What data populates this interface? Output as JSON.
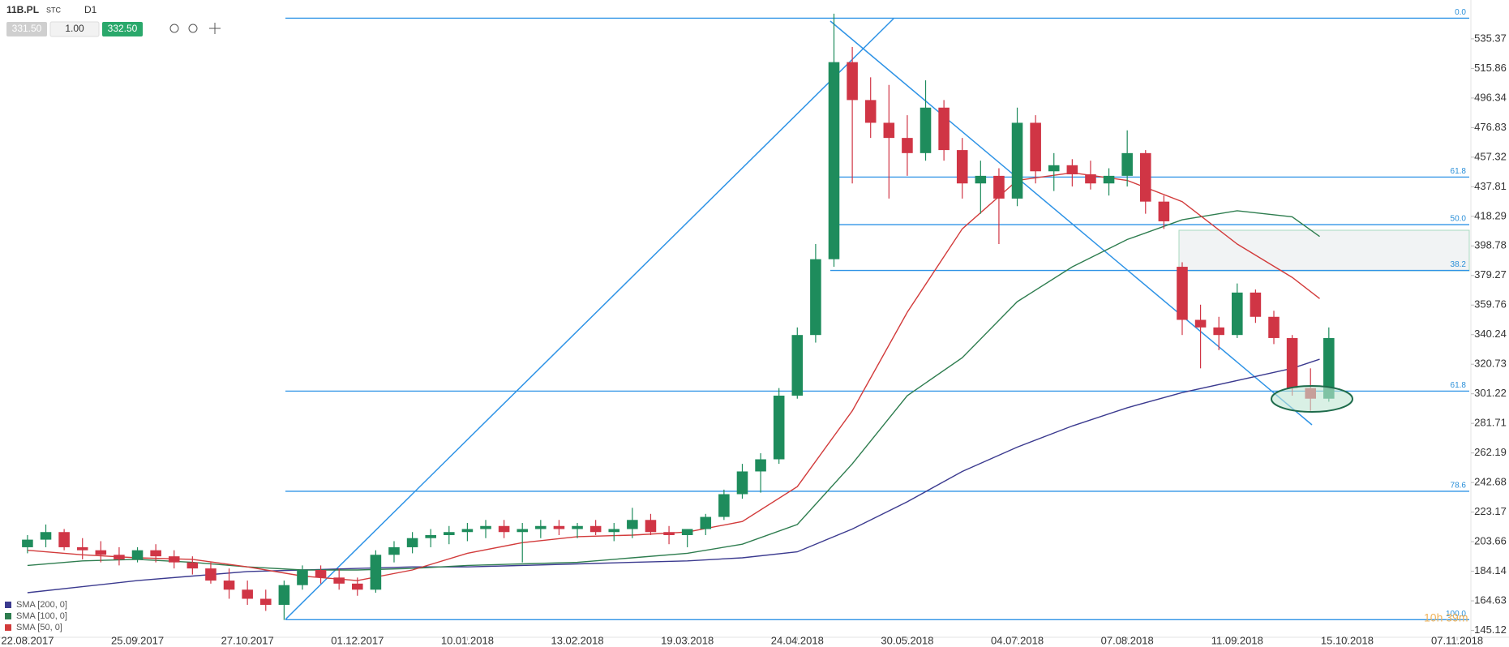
{
  "header": {
    "symbol": "11B.PL",
    "market": "STC",
    "interval": "D1",
    "bid": "331.50",
    "volume": "1.00",
    "ask": "332.50",
    "countdown": "10h 39m"
  },
  "chart_data": {
    "type": "candlestick",
    "x": [
      0,
      4,
      8,
      12,
      16,
      20,
      24,
      28,
      32,
      36,
      40,
      44,
      48,
      52,
      56,
      60,
      64,
      68,
      72,
      76,
      80,
      84,
      88,
      92,
      96,
      100,
      104,
      108,
      112,
      116,
      120,
      124,
      128,
      132,
      136,
      140,
      144,
      148,
      152,
      156,
      160,
      164,
      168,
      172,
      176,
      180,
      184,
      188,
      192,
      196,
      200,
      204,
      208,
      212,
      216,
      220,
      224,
      228,
      232,
      236,
      240,
      244,
      248,
      252,
      256,
      260,
      264,
      268,
      272,
      276,
      280,
      284
    ],
    "open": [
      200,
      205,
      210,
      200,
      198,
      195,
      192,
      198,
      194,
      190,
      186,
      178,
      172,
      166,
      162,
      175,
      185,
      180,
      176,
      172,
      195,
      200,
      206,
      208,
      210,
      212,
      214,
      210,
      212,
      214,
      212,
      214,
      210,
      212,
      218,
      210,
      208,
      212,
      220,
      235,
      250,
      258,
      300,
      340,
      390,
      520,
      495,
      480,
      470,
      460,
      490,
      462,
      440,
      445,
      430,
      480,
      448,
      452,
      446,
      440,
      445,
      460,
      428,
      385,
      350,
      345,
      340,
      368,
      352,
      338,
      305,
      298
    ],
    "high": [
      208,
      215,
      212,
      206,
      204,
      200,
      200,
      202,
      198,
      194,
      190,
      186,
      178,
      172,
      178,
      188,
      188,
      186,
      180,
      198,
      204,
      210,
      212,
      214,
      216,
      218,
      218,
      216,
      218,
      218,
      216,
      218,
      216,
      226,
      222,
      214,
      212,
      222,
      238,
      255,
      262,
      305,
      345,
      400,
      552,
      530,
      510,
      505,
      485,
      508,
      495,
      470,
      455,
      450,
      490,
      485,
      460,
      456,
      455,
      450,
      475,
      462,
      432,
      388,
      360,
      352,
      374,
      370,
      356,
      340,
      318,
      345
    ],
    "low": [
      196,
      200,
      198,
      192,
      190,
      188,
      190,
      190,
      186,
      182,
      176,
      166,
      162,
      158,
      152,
      172,
      176,
      172,
      168,
      170,
      190,
      196,
      200,
      202,
      204,
      206,
      206,
      190,
      206,
      208,
      206,
      208,
      204,
      206,
      208,
      202,
      200,
      208,
      218,
      232,
      236,
      255,
      298,
      335,
      385,
      440,
      470,
      430,
      445,
      455,
      455,
      430,
      420,
      400,
      425,
      440,
      435,
      438,
      436,
      432,
      438,
      420,
      410,
      340,
      318,
      330,
      338,
      348,
      334,
      300,
      290,
      296
    ],
    "close": [
      205,
      210,
      200,
      198,
      195,
      192,
      198,
      194,
      190,
      186,
      178,
      172,
      166,
      162,
      175,
      185,
      180,
      176,
      172,
      195,
      200,
      206,
      208,
      210,
      212,
      214,
      210,
      212,
      214,
      212,
      214,
      210,
      212,
      218,
      210,
      208,
      212,
      220,
      235,
      250,
      258,
      300,
      340,
      390,
      520,
      495,
      480,
      470,
      460,
      490,
      462,
      440,
      445,
      430,
      480,
      448,
      452,
      446,
      440,
      445,
      460,
      428,
      415,
      350,
      345,
      340,
      368,
      352,
      338,
      305,
      298,
      338
    ],
    "up_color": "#1e8c5c",
    "down_color": "#d03545",
    "overlays": [
      {
        "name": "SMA [200, 0]",
        "color": "#3b3a8f",
        "x": [
          0,
          12,
          24,
          36,
          48,
          60,
          72,
          84,
          96,
          108,
          120,
          132,
          144,
          156,
          168,
          180,
          192,
          204,
          216,
          228,
          240,
          252,
          264,
          276,
          282
        ],
        "values": [
          170,
          174,
          178,
          181,
          184,
          185,
          186,
          187,
          187,
          188,
          189,
          190,
          191,
          193,
          197,
          212,
          230,
          250,
          266,
          280,
          292,
          302,
          310,
          318,
          324
        ]
      },
      {
        "name": "SMA [100, 0]",
        "color": "#2e7d4f",
        "x": [
          0,
          12,
          24,
          36,
          48,
          60,
          72,
          84,
          96,
          108,
          120,
          132,
          144,
          156,
          168,
          180,
          192,
          204,
          216,
          228,
          240,
          252,
          264,
          276,
          282
        ],
        "values": [
          188,
          191,
          192,
          190,
          187,
          185,
          185,
          186,
          188,
          189,
          190,
          193,
          196,
          202,
          215,
          255,
          300,
          325,
          362,
          385,
          403,
          416,
          422,
          418,
          405
        ]
      },
      {
        "name": "SMA [50, 0]",
        "color": "#d23b3b",
        "x": [
          0,
          12,
          24,
          36,
          48,
          60,
          72,
          84,
          96,
          108,
          120,
          132,
          144,
          156,
          168,
          180,
          192,
          204,
          216,
          228,
          240,
          252,
          264,
          276,
          282
        ],
        "values": [
          198,
          195,
          193,
          192,
          187,
          181,
          178,
          185,
          196,
          203,
          207,
          208,
          210,
          217,
          240,
          290,
          355,
          410,
          442,
          447,
          442,
          428,
          400,
          378,
          364
        ]
      }
    ],
    "fib_levels": [
      {
        "label": "0.0",
        "value": 549
      },
      {
        "label": "61.8",
        "value": 444.2
      },
      {
        "label": "50.0",
        "value": 412.8
      },
      {
        "label": "38.2",
        "value": 382.6
      },
      {
        "label": "61.8",
        "value": 303
      },
      {
        "label": "78.6",
        "value": 236.9
      },
      {
        "label": "100.0",
        "value": 152.2
      }
    ],
    "fib_color": "#2e93e6",
    "xlim": [
      -6,
      315
    ],
    "xticks": [
      {
        "value": 0,
        "label": "22.08.2017"
      },
      {
        "value": 24,
        "label": "25.09.2017"
      },
      {
        "value": 48,
        "label": "27.10.2017"
      },
      {
        "value": 72,
        "label": "01.12.2017"
      },
      {
        "value": 96,
        "label": "10.01.2018"
      },
      {
        "value": 120,
        "label": "13.02.2018"
      },
      {
        "value": 144,
        "label": "19.03.2018"
      },
      {
        "value": 168,
        "label": "24.04.2018"
      },
      {
        "value": 192,
        "label": "30.05.2018"
      },
      {
        "value": 216,
        "label": "04.07.2018"
      },
      {
        "value": 240,
        "label": "07.08.2018"
      },
      {
        "value": 264,
        "label": "11.09.2018"
      },
      {
        "value": 288,
        "label": "15.10.2018"
      },
      {
        "value": 312,
        "label": "07.11.2018"
      }
    ],
    "ylim": [
      140.6,
      561
    ],
    "yticks": [
      535.37,
      515.86,
      496.34,
      476.83,
      457.32,
      437.81,
      418.29,
      398.78,
      379.27,
      359.76,
      340.24,
      320.73,
      301.22,
      281.71,
      262.19,
      242.68,
      223.17,
      203.66,
      184.14,
      164.63,
      145.12
    ]
  }
}
